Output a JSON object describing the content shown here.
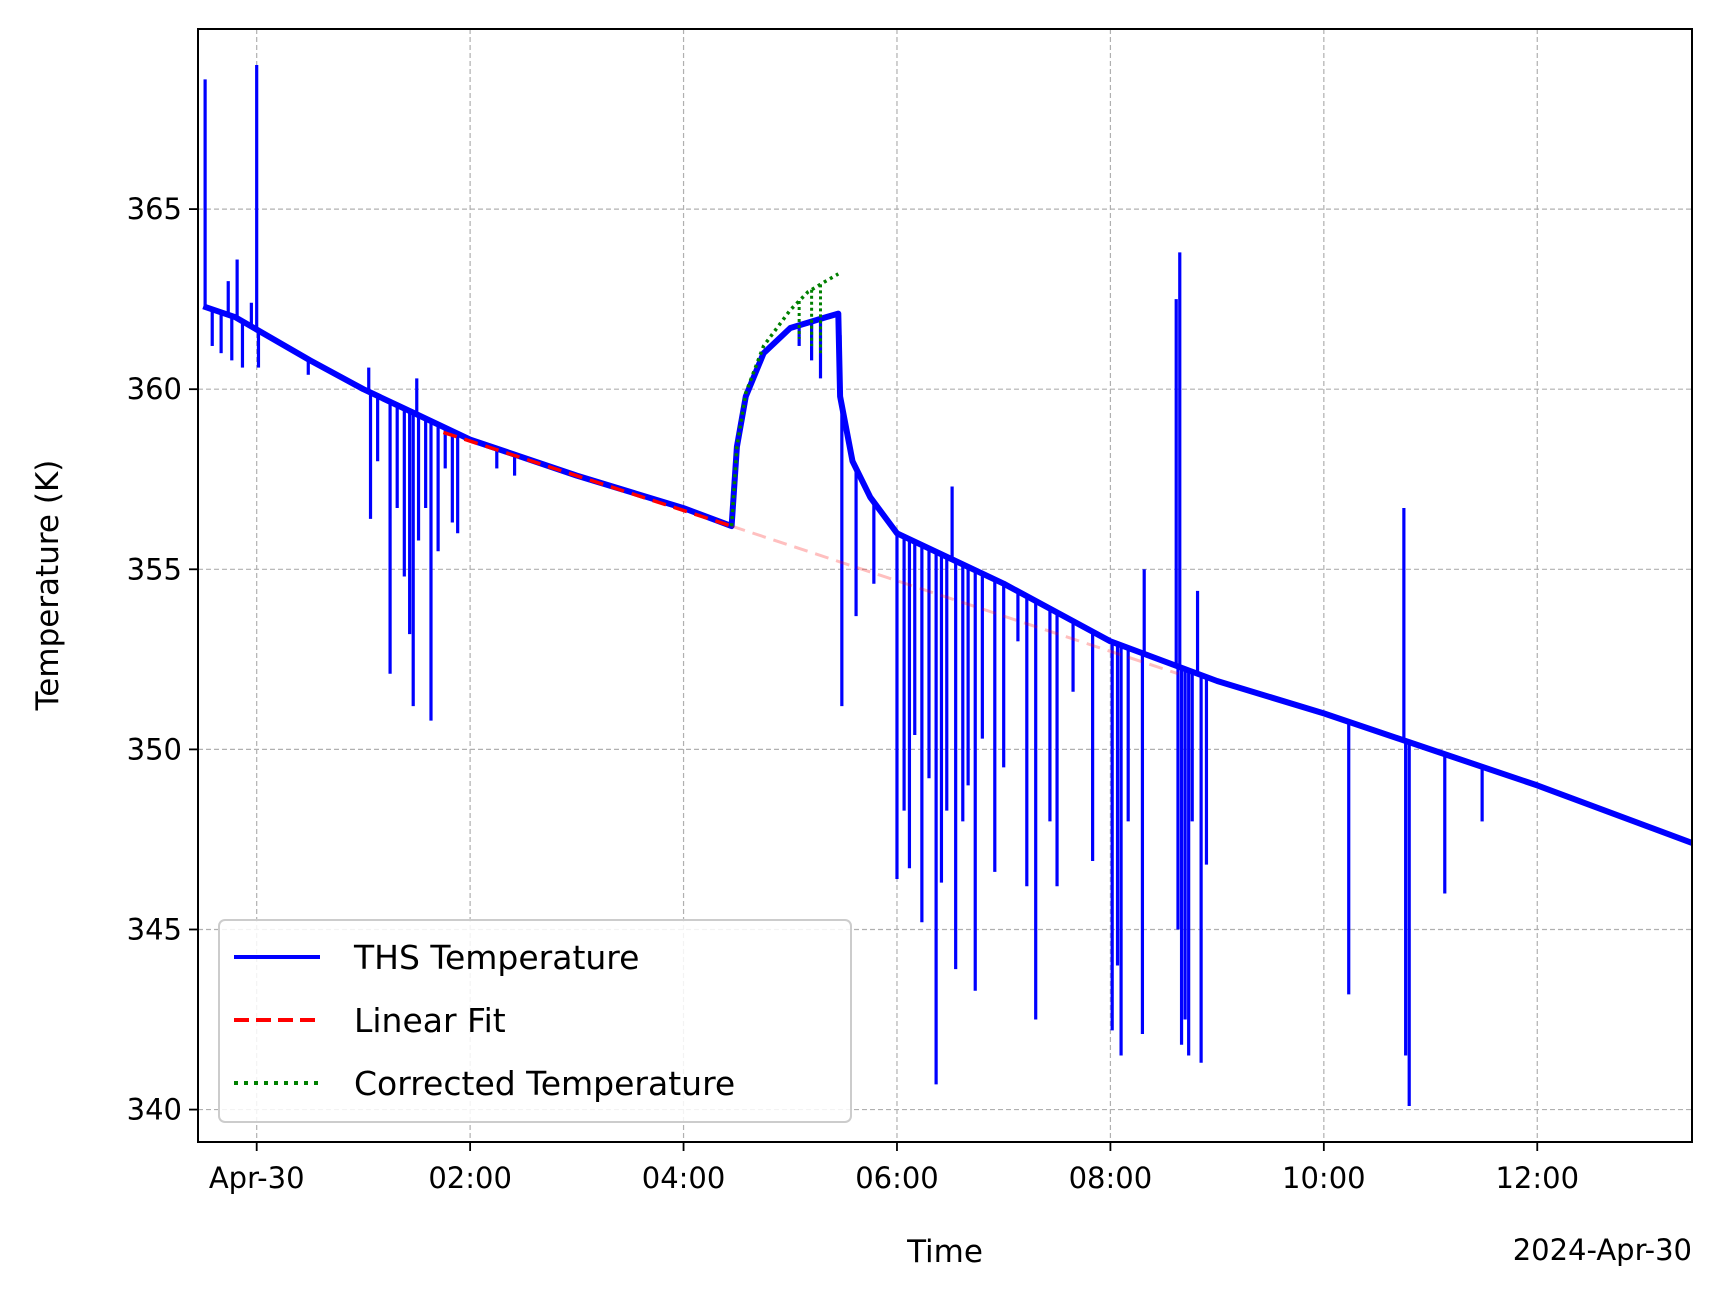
{
  "chart_data": {
    "type": "line",
    "title": "",
    "xlabel": "Time",
    "ylabel": "Temperature (K)",
    "x_offset_label": "2024-Apr-30",
    "x_range": [
      "2024-04-29T23:27",
      "2024-04-30T13:27"
    ],
    "ylim": [
      339.1,
      370.0
    ],
    "x_ticks": [
      {
        "t": "2024-04-30T00:00",
        "label": "Apr-30"
      },
      {
        "t": "2024-04-30T02:00",
        "label": "02:00"
      },
      {
        "t": "2024-04-30T04:00",
        "label": "04:00"
      },
      {
        "t": "2024-04-30T06:00",
        "label": "06:00"
      },
      {
        "t": "2024-04-30T08:00",
        "label": "08:00"
      },
      {
        "t": "2024-04-30T10:00",
        "label": "10:00"
      },
      {
        "t": "2024-04-30T12:00",
        "label": "12:00"
      }
    ],
    "y_ticks": [
      {
        "v": 340,
        "label": "340"
      },
      {
        "v": 345,
        "label": "345"
      },
      {
        "v": 350,
        "label": "350"
      },
      {
        "v": 355,
        "label": "355"
      },
      {
        "v": 360,
        "label": "360"
      },
      {
        "v": 365,
        "label": "365"
      }
    ],
    "grid": true,
    "legend_position": "lower-left",
    "series": [
      {
        "name": "THS Temperature",
        "color": "#0000ff",
        "style": "solid",
        "baseline": [
          [
            "2024-04-29T23:30",
            362.3
          ],
          [
            "2024-04-29T23:48",
            362.0
          ],
          [
            "2024-04-30T00:30",
            360.8
          ],
          [
            "2024-04-30T01:00",
            360.0
          ],
          [
            "2024-04-30T01:30",
            359.3
          ],
          [
            "2024-04-30T02:00",
            358.6
          ],
          [
            "2024-04-30T03:00",
            357.6
          ],
          [
            "2024-04-30T04:00",
            356.7
          ],
          [
            "2024-04-30T04:27",
            356.2
          ],
          [
            "2024-04-30T04:30",
            358.4
          ],
          [
            "2024-04-30T04:35",
            359.8
          ],
          [
            "2024-04-30T04:45",
            361.0
          ],
          [
            "2024-04-30T05:00",
            361.7
          ],
          [
            "2024-04-30T05:20",
            362.0
          ],
          [
            "2024-04-30T05:27",
            362.1
          ],
          [
            "2024-04-30T05:28",
            359.8
          ],
          [
            "2024-04-30T05:35",
            358.0
          ],
          [
            "2024-04-30T05:45",
            357.0
          ],
          [
            "2024-04-30T06:00",
            356.0
          ],
          [
            "2024-04-30T06:30",
            355.3
          ],
          [
            "2024-04-30T07:00",
            354.6
          ],
          [
            "2024-04-30T08:00",
            353.0
          ],
          [
            "2024-04-30T09:00",
            351.9
          ],
          [
            "2024-04-30T10:00",
            351.0
          ],
          [
            "2024-04-30T11:00",
            350.0
          ],
          [
            "2024-04-30T12:00",
            349.0
          ],
          [
            "2024-04-30T13:27",
            347.4
          ]
        ],
        "spikes": [
          [
            "2024-04-29T23:31",
            368.6
          ],
          [
            "2024-04-29T23:35",
            361.2
          ],
          [
            "2024-04-29T23:40",
            361.0
          ],
          [
            "2024-04-29T23:44",
            363.0
          ],
          [
            "2024-04-29T23:46",
            360.8
          ],
          [
            "2024-04-29T23:49",
            363.6
          ],
          [
            "2024-04-29T23:52",
            360.6
          ],
          [
            "2024-04-29T23:57",
            362.4
          ],
          [
            "2024-04-30T00:00",
            369.0
          ],
          [
            "2024-04-30T00:01",
            360.6
          ],
          [
            "2024-04-30T00:29",
            360.4
          ],
          [
            "2024-04-30T01:03",
            360.6
          ],
          [
            "2024-04-30T01:04",
            356.4
          ],
          [
            "2024-04-30T01:08",
            358.0
          ],
          [
            "2024-04-30T01:15",
            352.1
          ],
          [
            "2024-04-30T01:19",
            356.7
          ],
          [
            "2024-04-30T01:23",
            354.8
          ],
          [
            "2024-04-30T01:26",
            353.2
          ],
          [
            "2024-04-30T01:28",
            351.2
          ],
          [
            "2024-04-30T01:30",
            360.3
          ],
          [
            "2024-04-30T01:31",
            355.8
          ],
          [
            "2024-04-30T01:35",
            356.7
          ],
          [
            "2024-04-30T01:38",
            350.8
          ],
          [
            "2024-04-30T01:42",
            355.5
          ],
          [
            "2024-04-30T01:46",
            357.8
          ],
          [
            "2024-04-30T01:50",
            356.3
          ],
          [
            "2024-04-30T01:53",
            356.0
          ],
          [
            "2024-04-30T02:15",
            357.8
          ],
          [
            "2024-04-30T02:25",
            357.6
          ],
          [
            "2024-04-30T05:05",
            361.2
          ],
          [
            "2024-04-30T05:12",
            360.8
          ],
          [
            "2024-04-30T05:17",
            360.3
          ],
          [
            "2024-04-30T05:28",
            361.5
          ],
          [
            "2024-04-30T05:29",
            351.2
          ],
          [
            "2024-04-30T05:37",
            353.7
          ],
          [
            "2024-04-30T05:47",
            354.6
          ],
          [
            "2024-04-30T06:00",
            346.4
          ],
          [
            "2024-04-30T06:04",
            348.3
          ],
          [
            "2024-04-30T06:07",
            346.7
          ],
          [
            "2024-04-30T06:10",
            350.4
          ],
          [
            "2024-04-30T06:14",
            345.2
          ],
          [
            "2024-04-30T06:18",
            349.2
          ],
          [
            "2024-04-30T06:22",
            340.7
          ],
          [
            "2024-04-30T06:25",
            346.3
          ],
          [
            "2024-04-30T06:28",
            348.3
          ],
          [
            "2024-04-30T06:31",
            357.3
          ],
          [
            "2024-04-30T06:33",
            343.9
          ],
          [
            "2024-04-30T06:37",
            348.0
          ],
          [
            "2024-04-30T06:40",
            349.0
          ],
          [
            "2024-04-30T06:44",
            343.3
          ],
          [
            "2024-04-30T06:48",
            350.3
          ],
          [
            "2024-04-30T06:55",
            346.6
          ],
          [
            "2024-04-30T07:00",
            349.5
          ],
          [
            "2024-04-30T07:08",
            353.0
          ],
          [
            "2024-04-30T07:13",
            346.2
          ],
          [
            "2024-04-30T07:18",
            342.5
          ],
          [
            "2024-04-30T07:26",
            348.0
          ],
          [
            "2024-04-30T07:30",
            346.2
          ],
          [
            "2024-04-30T07:39",
            351.6
          ],
          [
            "2024-04-30T07:50",
            346.9
          ],
          [
            "2024-04-30T08:01",
            342.2
          ],
          [
            "2024-04-30T08:04",
            344.0
          ],
          [
            "2024-04-30T08:06",
            341.5
          ],
          [
            "2024-04-30T08:10",
            348.0
          ],
          [
            "2024-04-30T08:18",
            342.1
          ],
          [
            "2024-04-30T08:19",
            355.0
          ],
          [
            "2024-04-30T08:37",
            362.5
          ],
          [
            "2024-04-30T08:38",
            345.0
          ],
          [
            "2024-04-30T08:39",
            363.8
          ],
          [
            "2024-04-30T08:40",
            341.8
          ],
          [
            "2024-04-30T08:42",
            342.5
          ],
          [
            "2024-04-30T08:44",
            341.5
          ],
          [
            "2024-04-30T08:46",
            348.0
          ],
          [
            "2024-04-30T08:49",
            354.4
          ],
          [
            "2024-04-30T08:51",
            341.3
          ],
          [
            "2024-04-30T08:54",
            346.8
          ],
          [
            "2024-04-30T10:14",
            343.2
          ],
          [
            "2024-04-30T10:45",
            356.7
          ],
          [
            "2024-04-30T10:46",
            341.5
          ],
          [
            "2024-04-30T10:48",
            340.1
          ],
          [
            "2024-04-30T11:08",
            346.0
          ],
          [
            "2024-04-30T11:29",
            348.0
          ]
        ]
      },
      {
        "name": "Linear Fit",
        "color": "#ff0000",
        "style": "dashed",
        "points": [
          [
            "2024-04-30T01:45",
            358.8
          ],
          [
            "2024-04-30T04:27",
            356.2
          ]
        ],
        "extension": [
          [
            "2024-04-30T04:27",
            356.2
          ],
          [
            "2024-04-30T08:38",
            352.1
          ]
        ]
      },
      {
        "name": "Corrected Temperature",
        "color": "#008000",
        "style": "dotted",
        "points": [
          [
            "2024-04-30T04:27",
            356.2
          ],
          [
            "2024-04-30T04:30",
            358.4
          ],
          [
            "2024-04-30T04:35",
            359.9
          ],
          [
            "2024-04-30T04:45",
            361.2
          ],
          [
            "2024-04-30T05:00",
            362.2
          ],
          [
            "2024-04-30T05:10",
            362.7
          ],
          [
            "2024-04-30T05:20",
            363.0
          ],
          [
            "2024-04-30T05:27",
            363.2
          ]
        ],
        "spikes": [
          [
            "2024-04-30T05:05",
            361.4
          ],
          [
            "2024-04-30T05:12",
            361.2
          ],
          [
            "2024-04-30T05:17",
            361.0
          ]
        ]
      }
    ]
  }
}
